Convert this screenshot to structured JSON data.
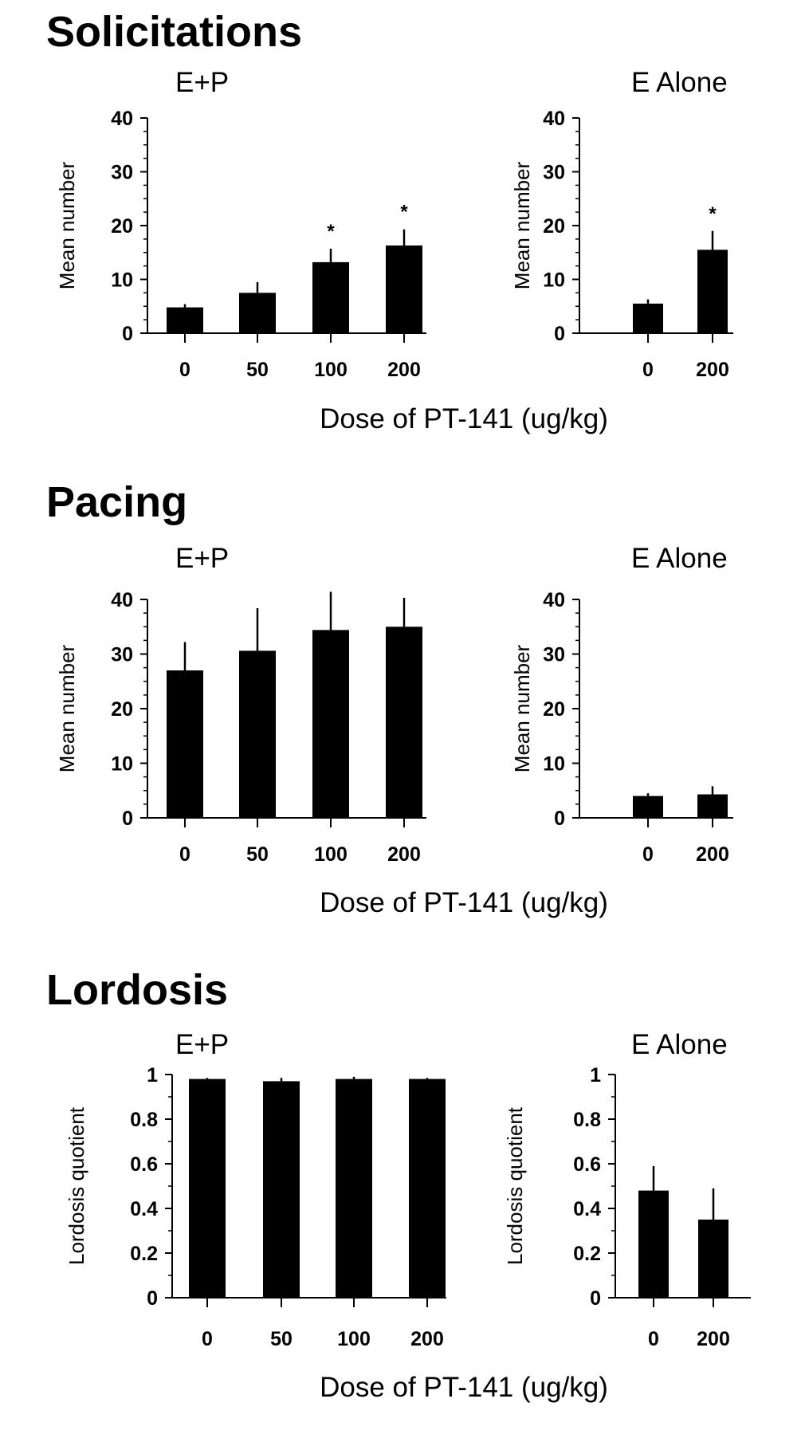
{
  "figure": {
    "x_axis_title": "Dose of PT-141 (ug/kg)"
  },
  "chart_data": [
    {
      "type": "bar",
      "section": "Solicitations",
      "title": "E+P",
      "ylabel": "Mean number",
      "xlabel": "Dose of PT-141 (ug/kg)",
      "categories": [
        "0",
        "50",
        "100",
        "200"
      ],
      "values": [
        4.8,
        7.5,
        13.2,
        16.3
      ],
      "errors": [
        0.6,
        2.0,
        2.5,
        3.0
      ],
      "significant": [
        false,
        false,
        true,
        true
      ],
      "ylim": [
        0,
        40
      ],
      "yticks": [
        "0",
        "10",
        "20",
        "30",
        "40"
      ],
      "minor_ticks_per_interval": 4,
      "grid": false
    },
    {
      "type": "bar",
      "section": "Solicitations",
      "title": "E Alone",
      "ylabel": "Mean number",
      "xlabel": "Dose of PT-141 (ug/kg)",
      "categories": [
        "0",
        "200"
      ],
      "values": [
        5.5,
        15.5
      ],
      "errors": [
        0.8,
        3.5
      ],
      "significant": [
        false,
        true
      ],
      "ylim": [
        0,
        40
      ],
      "yticks": [
        "0",
        "10",
        "20",
        "30",
        "40"
      ],
      "minor_ticks_per_interval": 4,
      "grid": false
    },
    {
      "type": "bar",
      "section": "Pacing",
      "title": "E+P",
      "ylabel": "Mean number",
      "xlabel": "Dose of PT-141 (ug/kg)",
      "categories": [
        "0",
        "50",
        "100",
        "200"
      ],
      "values": [
        27.0,
        30.6,
        34.4,
        35.0
      ],
      "errors": [
        5.2,
        7.8,
        7.0,
        5.3
      ],
      "significant": [
        false,
        false,
        false,
        false
      ],
      "ylim": [
        0,
        40
      ],
      "yticks": [
        "0",
        "10",
        "20",
        "30",
        "40"
      ],
      "minor_ticks_per_interval": 4,
      "grid": false
    },
    {
      "type": "bar",
      "section": "Pacing",
      "title": "E Alone",
      "ylabel": "Mean number",
      "xlabel": "Dose of PT-141 (ug/kg)",
      "categories": [
        "0",
        "200"
      ],
      "values": [
        4.0,
        4.3
      ],
      "errors": [
        0.5,
        1.5
      ],
      "significant": [
        false,
        false
      ],
      "ylim": [
        0,
        40
      ],
      "yticks": [
        "0",
        "10",
        "20",
        "30",
        "40"
      ],
      "minor_ticks_per_interval": 4,
      "grid": false
    },
    {
      "type": "bar",
      "section": "Lordosis",
      "title": "E+P",
      "ylabel": "Lordosis quotient",
      "xlabel": "Dose of PT-141 (ug/kg)",
      "categories": [
        "0",
        "50",
        "100",
        "200"
      ],
      "values": [
        0.98,
        0.97,
        0.98,
        0.98
      ],
      "errors": [
        0.005,
        0.015,
        0.01,
        0.005
      ],
      "significant": [
        false,
        false,
        false,
        false
      ],
      "ylim": [
        0,
        1
      ],
      "yticks": [
        "0",
        "0.2",
        "0.4",
        "0.6",
        "0.8",
        "1"
      ],
      "minor_ticks_per_interval": 2,
      "grid": false
    },
    {
      "type": "bar",
      "section": "Lordosis",
      "title": "E Alone",
      "ylabel": "Lordosis quotient",
      "xlabel": "Dose of PT-141 (ug/kg)",
      "categories": [
        "0",
        "200"
      ],
      "values": [
        0.48,
        0.35
      ],
      "errors": [
        0.11,
        0.14
      ],
      "significant": [
        false,
        false
      ],
      "ylim": [
        0,
        1
      ],
      "yticks": [
        "0",
        "0.2",
        "0.4",
        "0.6",
        "0.8",
        "1"
      ],
      "minor_ticks_per_interval": 2,
      "grid": false
    }
  ],
  "colors": {
    "bar": "#000000",
    "axis": "#000000",
    "background": "#ffffff"
  },
  "significance_symbol": "*"
}
